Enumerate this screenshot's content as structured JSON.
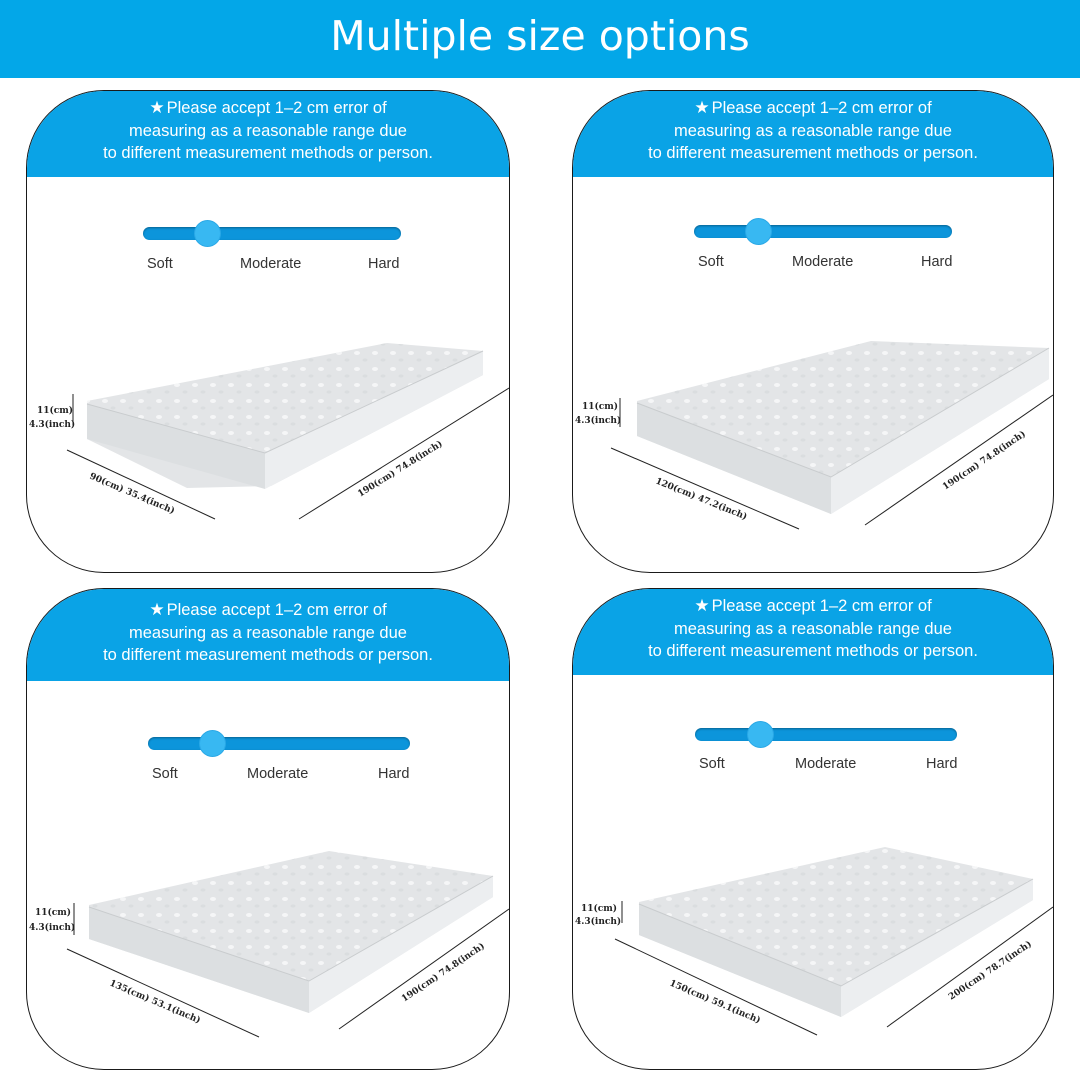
{
  "title": "Multiple size options",
  "panels": [
    {
      "note": [
        "Please accept 1–2 cm error of",
        "measuring as a reasonable range due",
        "to different measurement methods or person."
      ],
      "firmness": {
        "labels": [
          "Soft",
          "Moderate",
          "Hard"
        ],
        "level": 0.25
      },
      "dims": {
        "height": "11(cm)",
        "height_inch": "4.3(inch)",
        "width": "90(cm) 35.4(inch)",
        "length": "190(cm) 74.8(inch)"
      }
    },
    {
      "note": [
        "Please accept 1–2 cm error of",
        "measuring as a reasonable range due",
        "to different measurement methods or person."
      ],
      "firmness": {
        "labels": [
          "Soft",
          "Moderate",
          "Hard"
        ],
        "level": 0.25
      },
      "dims": {
        "height": "11(cm)",
        "height_inch": "4.3(inch)",
        "width": "120(cm) 47.2(inch)",
        "length": "190(cm) 74.8(inch)"
      }
    },
    {
      "note": [
        "Please accept 1–2 cm error of",
        "measuring as a reasonable range due",
        "to different measurement methods or person."
      ],
      "firmness": {
        "labels": [
          "Soft",
          "Moderate",
          "Hard"
        ],
        "level": 0.25
      },
      "dims": {
        "height": "11(cm)",
        "height_inch": "4.3(inch)",
        "width": "135(cm) 53.1(inch)",
        "length": "190(cm) 74.8(inch)"
      }
    },
    {
      "note": [
        "Please accept 1–2 cm error of",
        "measuring as a reasonable range due",
        "to different measurement methods or person."
      ],
      "firmness": {
        "labels": [
          "Soft",
          "Moderate",
          "Hard"
        ],
        "level": 0.25
      },
      "dims": {
        "height": "11(cm)",
        "height_inch": "4.3(inch)",
        "width": "150(cm) 59.1(inch)",
        "length": "200(cm) 78.7(inch)"
      }
    }
  ],
  "colors": {
    "banner": "#03a7e8",
    "panel_header": "#0aa3e6",
    "slider_track": "#0c95db",
    "slider_knob": "#38b8f2",
    "mattress": "#e4e6e8"
  },
  "icons": {
    "star": "★"
  }
}
